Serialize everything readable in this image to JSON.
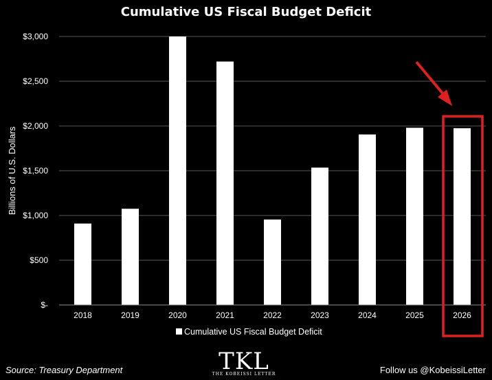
{
  "chart_data": {
    "type": "bar",
    "title": "Cumulative US Fiscal Budget Deficit",
    "ylabel": "Billions of U.S. Dollars",
    "xlabel": "",
    "categories": [
      "2018",
      "2019",
      "2020",
      "2021",
      "2022",
      "2023",
      "2024",
      "2025",
      "2026"
    ],
    "series": [
      {
        "name": "Cumulative US Fiscal Budget Deficit",
        "values": [
          910,
          1075,
          3000,
          2720,
          955,
          1535,
          1905,
          1980,
          1975
        ]
      }
    ],
    "ylim": [
      0,
      3000
    ],
    "yticks": [
      0,
      500,
      1000,
      1500,
      2000,
      2500,
      3000
    ],
    "ytick_labels": [
      "$-",
      "$500",
      "$1,000",
      "$1,500",
      "$2,000",
      "$2,500",
      "$3,000"
    ],
    "grid": true,
    "legend_position": "bottom",
    "highlighted_category": "2026",
    "colors": {
      "background": "#000000",
      "bars": "#ffffff",
      "grid": "#595959",
      "highlight": "#e02020"
    }
  },
  "footer": {
    "source": "Source: Treasury Department",
    "logo_text": "TKL",
    "logo_subtext": "THE KOBEISSI LETTER",
    "follow": "Follow us @KobeissiLetter"
  }
}
